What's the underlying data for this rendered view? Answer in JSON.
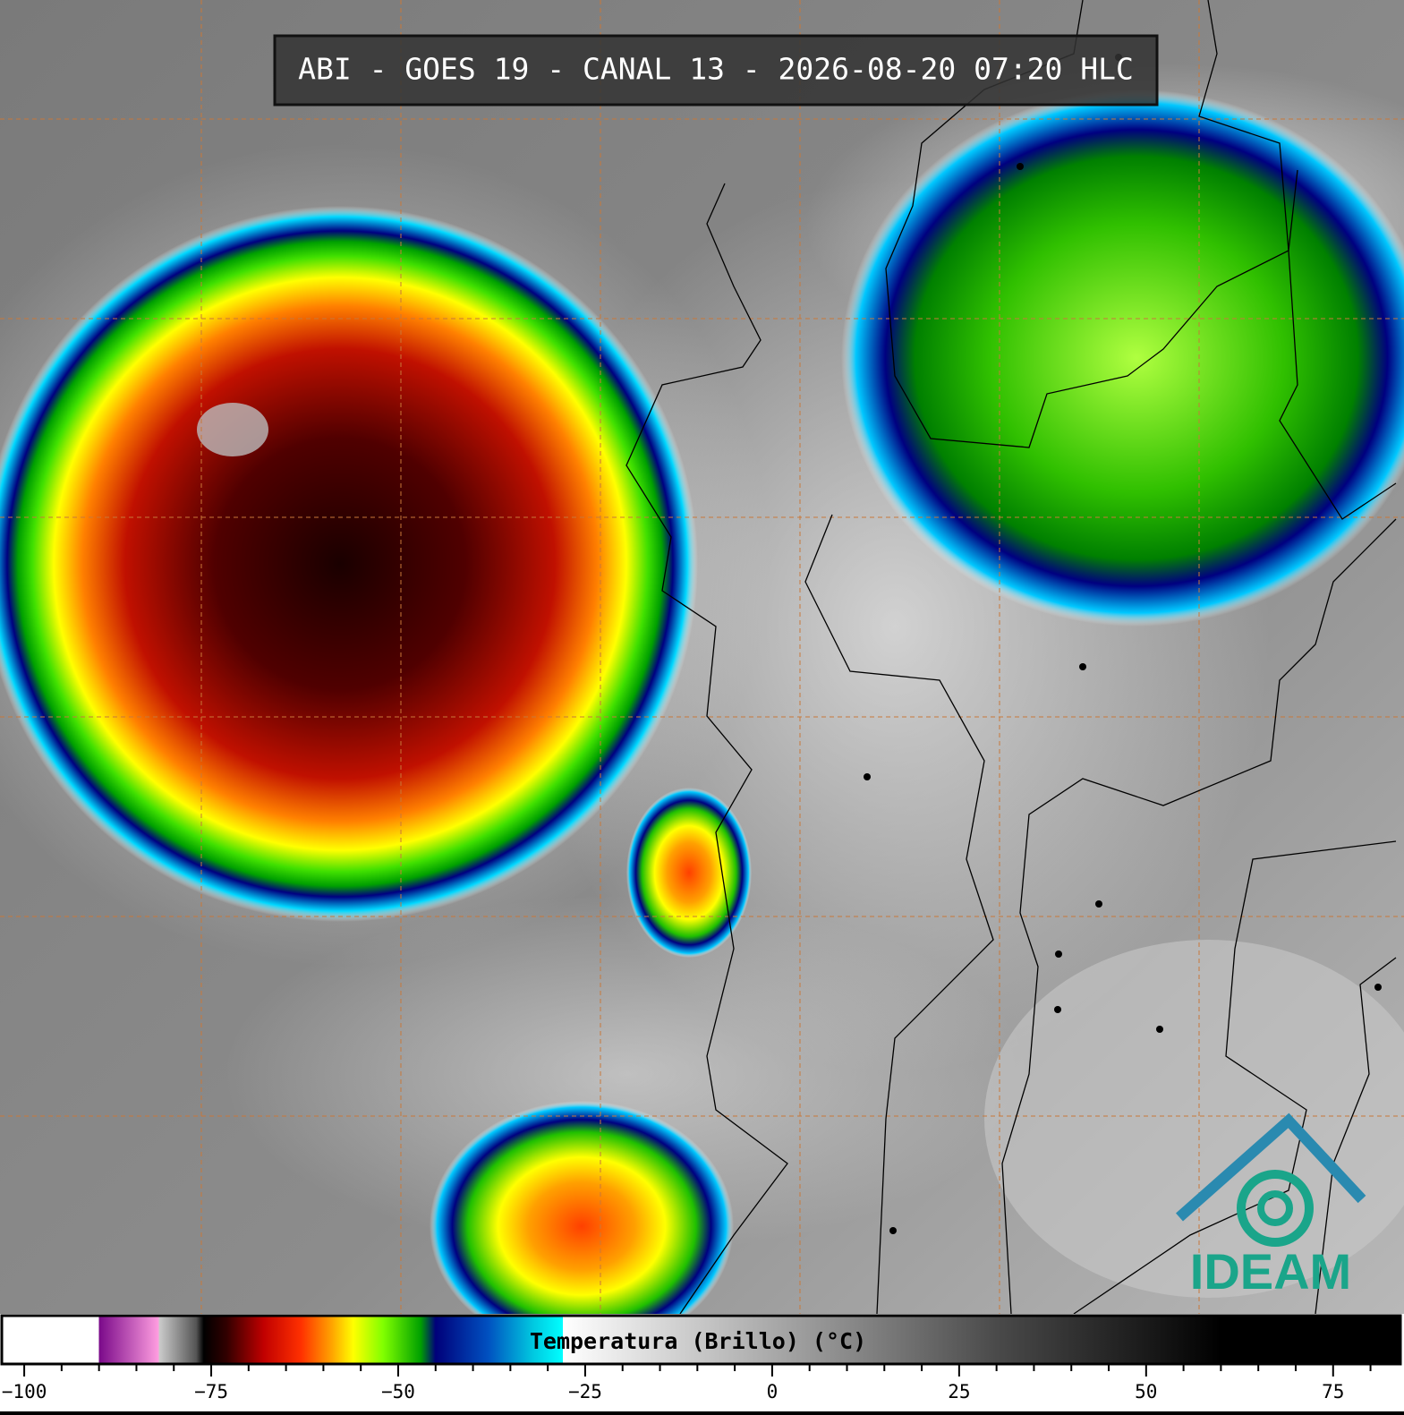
{
  "header": {
    "title": "ABI - GOES 19 - CANAL 13 - 2026-08-20 07:20 HLC"
  },
  "logo": {
    "text": "IDEAM"
  },
  "colorbar": {
    "label": "Temperatura (Brillo) (°C)",
    "lim": [
      -103,
      84
    ],
    "ticks": [
      {
        "value": -100,
        "label": "−100"
      },
      {
        "value": -75,
        "label": "−75"
      },
      {
        "value": -50,
        "label": "−50"
      },
      {
        "value": -25,
        "label": "−25"
      },
      0,
      25,
      50,
      75
    ],
    "minor_ticks": [
      -95,
      -90,
      -85,
      -80,
      -70,
      -65,
      -60,
      -55,
      -45,
      -40,
      -35,
      -30,
      -20,
      -15,
      -10,
      -5,
      5,
      10,
      15,
      20,
      30,
      35,
      40,
      45,
      55,
      60,
      65,
      70,
      80
    ],
    "stops": [
      {
        "value": -103,
        "color": "#ffffff"
      },
      {
        "value": -90,
        "color": "#ffffff"
      },
      {
        "value": -90,
        "color": "#7a0a8a"
      },
      {
        "value": -82,
        "color": "#ff9ee0"
      },
      {
        "value": -82,
        "color": "#cccccc"
      },
      {
        "value": -77,
        "color": "#555555"
      },
      {
        "value": -76,
        "color": "#000000"
      },
      {
        "value": -73,
        "color": "#300000"
      },
      {
        "value": -68,
        "color": "#c00000"
      },
      {
        "value": -63,
        "color": "#ff3000"
      },
      {
        "value": -59,
        "color": "#ffa000"
      },
      {
        "value": -56,
        "color": "#ffff00"
      },
      {
        "value": -52,
        "color": "#80ff00"
      },
      {
        "value": -47,
        "color": "#00a000"
      },
      {
        "value": -45,
        "color": "#00007a"
      },
      {
        "value": -38,
        "color": "#0050c0"
      },
      {
        "value": -32,
        "color": "#00c8e0"
      },
      {
        "value": -28,
        "color": "#00ffff"
      },
      {
        "value": -28,
        "color": "#ffffff"
      },
      {
        "value": -10,
        "color": "#c8c8c8"
      },
      {
        "value": 10,
        "color": "#8a8a8a"
      },
      {
        "value": 30,
        "color": "#4a4a4a"
      },
      {
        "value": 50,
        "color": "#1a1a1a"
      },
      {
        "value": 60,
        "color": "#000000"
      },
      {
        "value": 84,
        "color": "#000000"
      }
    ]
  }
}
